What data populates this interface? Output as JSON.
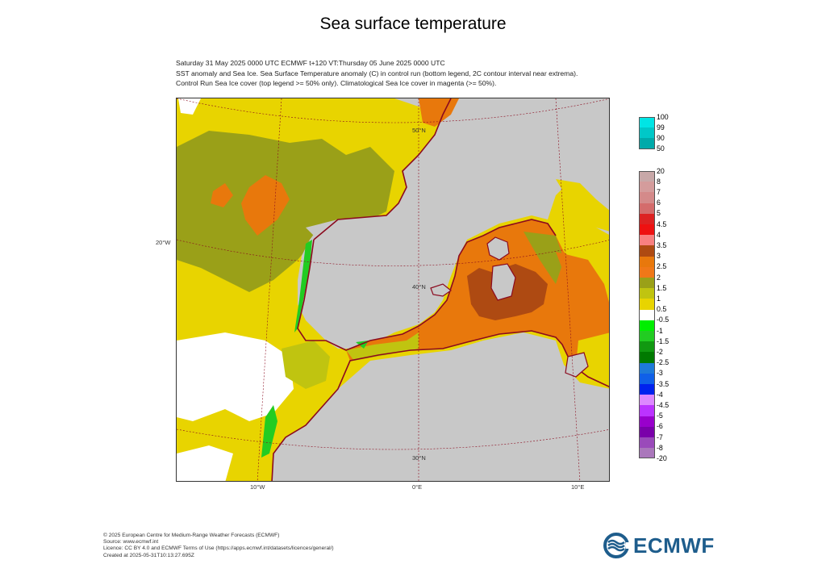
{
  "title": "Sea surface temperature",
  "header": {
    "line1": "Saturday 31 May 2025 0000 UTC  ECMWF  t+120  VT:Thursday 05 June 2025 0000 UTC",
    "line2": "SST anomaly and Sea Ice. Sea Surface Temperature anomaly (C) in control run (bottom legend, 2C contour interval near extrema).",
    "line3": "Control Run Sea Ice cover (top legend >= 50% only). Climatological Sea Ice cover in magenta (>= 50%)."
  },
  "map_labels": {
    "lon_left": "20°W",
    "lat_50": "50°N",
    "lat_40": "40°N",
    "lat_30": "30°N",
    "lon_10w": "10°W",
    "lon_0": "0°E",
    "lon_10e": "10°E"
  },
  "ice_legend": {
    "ticks": [
      "100",
      "99",
      "90",
      "50"
    ],
    "colors": [
      "#00e5e5",
      "#00c8c8",
      "#00aaaa"
    ]
  },
  "anomaly_legend": {
    "ticks": [
      "20",
      "8",
      "7",
      "6",
      "5",
      "4.5",
      "4",
      "3.5",
      "3",
      "2.5",
      "2",
      "1.5",
      "1",
      "0.5",
      "-0.5",
      "-1",
      "-1.5",
      "-2",
      "-2.5",
      "-3",
      "-3.5",
      "-4",
      "-4.5",
      "-5",
      "-6",
      "-7",
      "-8",
      "-20"
    ],
    "colors": [
      "#c8a8a8",
      "#d49c9c",
      "#d48a8a",
      "#d46c6c",
      "#dd2222",
      "#ee1111",
      "#f88080",
      "#ae4a12",
      "#e8780c",
      "#f07818",
      "#9aa018",
      "#c0c410",
      "#e8d400",
      "#ffffff",
      "#00ee00",
      "#22cc22",
      "#119911",
      "#007a00",
      "#1e7ad8",
      "#1060e8",
      "#0022ee",
      "#dd88ff",
      "#bb33ff",
      "#9900cc",
      "#7a00aa",
      "#9a4aba",
      "#aa77bb"
    ]
  },
  "footer": {
    "line1": "© 2025 European Centre for Medium-Range Weather Forecasts (ECMWF)",
    "line2": "Source: www.ecmwf.int",
    "line3": "Licence: CC BY 4.0 and ECMWF Terms of Use (https://apps.ecmwf.int/datasets/licences/general/)",
    "line4": "Created at 2025-05-31T10:13:27.695Z"
  },
  "logo": {
    "text": "ECMWF",
    "color": "#1e5d8c"
  }
}
